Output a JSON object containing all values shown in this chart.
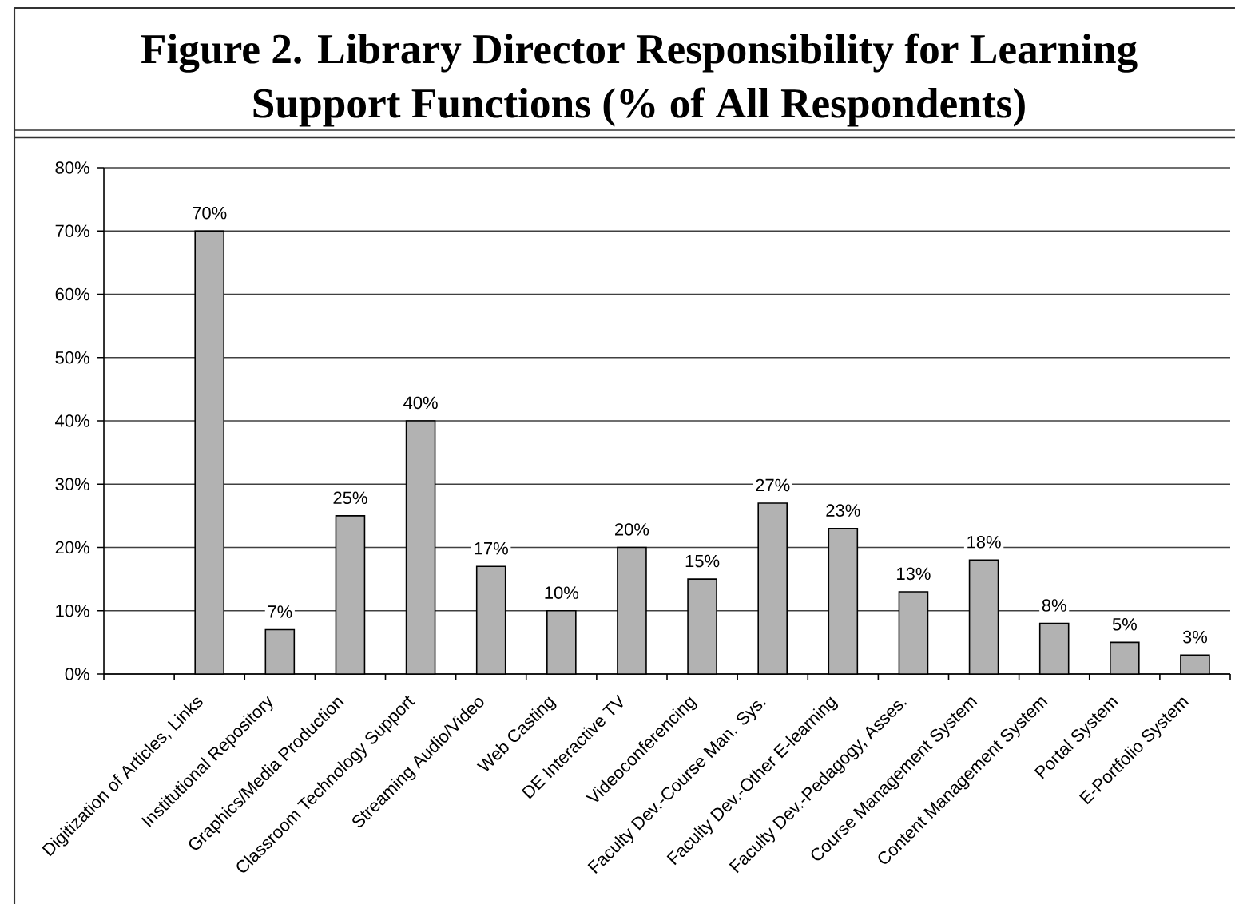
{
  "chart_data": {
    "type": "bar",
    "title": "Figure 2. Library Director Responsibility for Learning Support Functions (% of All Respondents)",
    "categories": [
      null,
      "Digitization of Articles, Links",
      "Institutional Repository",
      "Graphics/Media Production",
      "Classroom Technology Support",
      "Streaming Audio/Video",
      "Web Casting",
      "DE Interactive TV",
      "Videoconferencing",
      "Faculty Dev.-Course Man. Sys.",
      "Faculty Dev.-Other E-learning",
      "Faculty Dev.-Pedagogy, Asses.",
      "Course Management System",
      "Content Management System",
      "Portal System",
      "E-Portfolio System"
    ],
    "values": [
      null,
      70,
      7,
      25,
      40,
      17,
      10,
      20,
      15,
      27,
      23,
      13,
      18,
      8,
      5,
      3
    ],
    "value_labels": [
      null,
      "70%",
      "7%",
      "25%",
      "40%",
      "17%",
      "10%",
      "20%",
      "15%",
      "27%",
      "23%",
      "13%",
      "18%",
      "8%",
      "5%",
      "3%"
    ],
    "color": "#b2b2b2",
    "ylim": [
      0,
      80
    ],
    "yticks": [
      {
        "value": 0,
        "label": "0%"
      },
      {
        "value": 10,
        "label": "10%"
      },
      {
        "value": 20,
        "label": "20%"
      },
      {
        "value": 30,
        "label": "30%"
      },
      {
        "value": 40,
        "label": "40%"
      },
      {
        "value": 50,
        "label": "50%"
      },
      {
        "value": 60,
        "label": "60%"
      },
      {
        "value": 70,
        "label": "70%"
      },
      {
        "value": 80,
        "label": "80%"
      }
    ],
    "grid": "y"
  }
}
